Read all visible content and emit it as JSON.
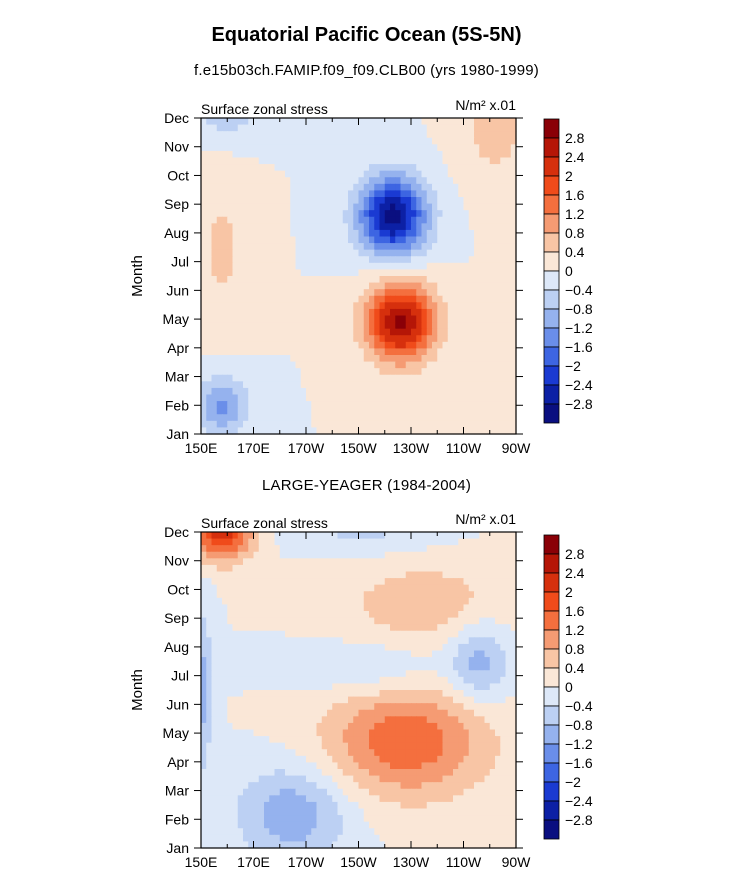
{
  "title": "Equatorial Pacific Ocean (5S-5N)",
  "colorbar": {
    "levels": [
      "2.8",
      "2.4",
      "2",
      "1.6",
      "1.2",
      "0.8",
      "0.4",
      "0",
      "-0.4",
      "-0.8",
      "-1.2",
      "-1.6",
      "-2",
      "-2.4",
      "-2.8"
    ],
    "colors": [
      "#8a0007",
      "#b51607",
      "#d6300d",
      "#f04b1a",
      "#f46f3e",
      "#f59b73",
      "#f8c5a5",
      "#fae7d7",
      "#dde8f8",
      "#bcd0f3",
      "#95b2ee",
      "#6a8ee9",
      "#3d65e2",
      "#1a3ad2",
      "#0c20a5",
      "#0a0f80"
    ]
  },
  "chart_data": [
    {
      "type": "heatmap",
      "title": "f.e15b03ch.FAMIP.f09_f09.CLB00 (yrs 1980-1999)",
      "left_label": "Surface zonal stress",
      "right_label": "N/m² x.01",
      "ylabel": "Month",
      "xticks": [
        "150E",
        "170E",
        "170W",
        "150W",
        "130W",
        "110W",
        "90W"
      ],
      "yticks": [
        "Jan",
        "Feb",
        "Mar",
        "Apr",
        "May",
        "Jun",
        "Jul",
        "Aug",
        "Sep",
        "Oct",
        "Nov",
        "Dec"
      ],
      "lon_range": [
        150,
        270
      ],
      "features": [
        {
          "lon": 226,
          "month": 4.9,
          "value": 2.9,
          "sx": 9,
          "sy": 0.95,
          "rot": -0.42
        },
        {
          "lon": 223,
          "month": 8.6,
          "value": -3.0,
          "sx": 9,
          "sy": 0.95,
          "rot": -0.42
        },
        {
          "lon": 158,
          "month": 2.0,
          "value": -1.3,
          "sx": 7,
          "sy": 0.7,
          "rot": 0
        },
        {
          "lon": 160,
          "month": 12.1,
          "value": -0.6,
          "sx": 9,
          "sy": 0.7,
          "rot": 0
        },
        {
          "lon": 262,
          "month": 11.6,
          "value": 0.6,
          "sx": 9,
          "sy": 1.3,
          "rot": 0
        },
        {
          "lon": 158,
          "month": 7.5,
          "value": 0.5,
          "sx": 7,
          "sy": 1.8,
          "rot": 0
        }
      ]
    },
    {
      "type": "heatmap",
      "title": "LARGE-YEAGER (1984-2004)",
      "left_label": "Surface zonal stress",
      "right_label": "N/m² x.01",
      "ylabel": "Month",
      "xticks": [
        "150E",
        "170E",
        "170W",
        "150W",
        "130W",
        "110W",
        "90W"
      ],
      "yticks": [
        "Jan",
        "Feb",
        "Mar",
        "Apr",
        "May",
        "Jun",
        "Jul",
        "Aug",
        "Sep",
        "Oct",
        "Nov",
        "Dec"
      ],
      "lon_range": [
        150,
        270
      ],
      "features": [
        {
          "lon": 228,
          "month": 4.7,
          "value": 1.5,
          "sx": 22,
          "sy": 1.4,
          "rot": 0
        },
        {
          "lon": 158,
          "month": 12.0,
          "value": 2.2,
          "sx": 8,
          "sy": 0.7,
          "rot": 0
        },
        {
          "lon": 185,
          "month": 2.2,
          "value": -1.1,
          "sx": 15,
          "sy": 1.2,
          "rot": 0
        },
        {
          "lon": 150,
          "month": 6.5,
          "value": -1.0,
          "sx": 3,
          "sy": 2.0,
          "rot": 0
        },
        {
          "lon": 256,
          "month": 7.5,
          "value": -1.0,
          "sx": 8,
          "sy": 1.0,
          "rot": 0
        },
        {
          "lon": 235,
          "month": 9.5,
          "value": 0.7,
          "sx": 22,
          "sy": 1.0,
          "rot": 0
        },
        {
          "lon": 215,
          "month": 7.2,
          "value": -0.5,
          "sx": 20,
          "sy": 0.7,
          "rot": 0
        },
        {
          "lon": 212,
          "month": 12.0,
          "value": -0.5,
          "sx": 18,
          "sy": 0.5,
          "rot": 0
        }
      ]
    }
  ]
}
